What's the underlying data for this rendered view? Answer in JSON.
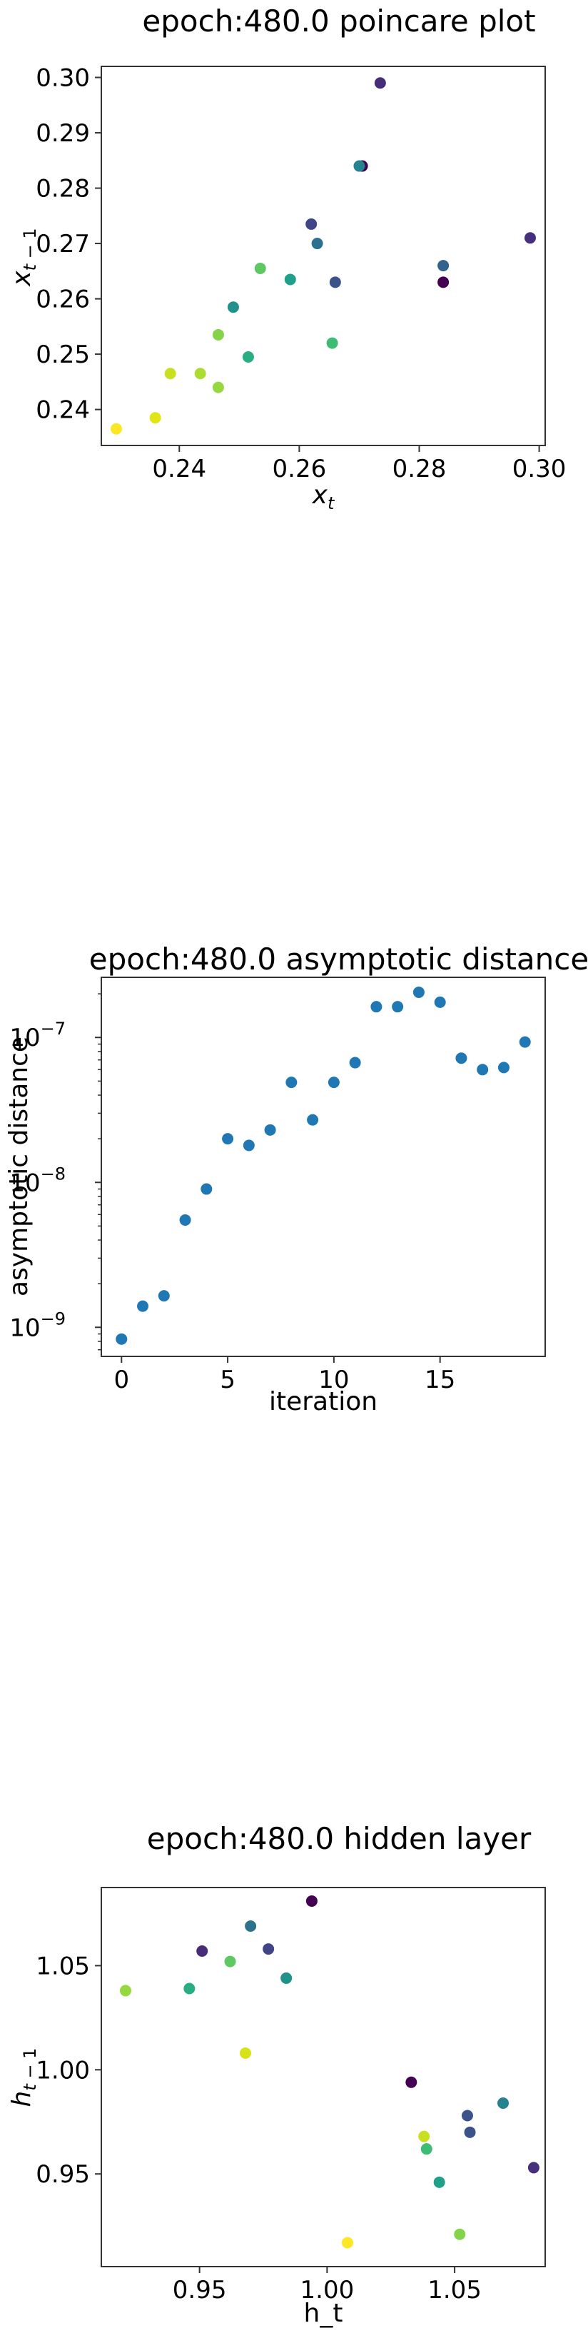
{
  "chart_data": [
    {
      "type": "scatter",
      "title": "epoch:480.0 poincare plot",
      "xlabel": "x_t",
      "ylabel": "x_{t-1}",
      "xlim": [
        0.227,
        0.301
      ],
      "ylim": [
        0.2335,
        0.302
      ],
      "xticks": [
        0.24,
        0.26,
        0.28,
        0.3
      ],
      "xtick_labels": [
        "0.24",
        "0.26",
        "0.28",
        "0.30"
      ],
      "yticks": [
        0.24,
        0.25,
        0.26,
        0.27,
        0.28,
        0.29,
        0.3
      ],
      "ytick_labels": [
        "0.24",
        "0.25",
        "0.26",
        "0.27",
        "0.28",
        "0.29",
        "0.30"
      ],
      "colormap": "viridis",
      "points": [
        {
          "x": 0.284,
          "y": 0.263,
          "color": "#440154"
        },
        {
          "x": 0.2705,
          "y": 0.284,
          "color": "#440154"
        },
        {
          "x": 0.2735,
          "y": 0.299,
          "color": "#472c7a"
        },
        {
          "x": 0.2985,
          "y": 0.271,
          "color": "#46307e"
        },
        {
          "x": 0.262,
          "y": 0.2735,
          "color": "#414487"
        },
        {
          "x": 0.266,
          "y": 0.263,
          "color": "#3b528b"
        },
        {
          "x": 0.284,
          "y": 0.266,
          "color": "#33638d"
        },
        {
          "x": 0.263,
          "y": 0.27,
          "color": "#2c728e"
        },
        {
          "x": 0.27,
          "y": 0.284,
          "color": "#26828e"
        },
        {
          "x": 0.249,
          "y": 0.2585,
          "color": "#21918c"
        },
        {
          "x": 0.2585,
          "y": 0.2635,
          "color": "#1fa088"
        },
        {
          "x": 0.2515,
          "y": 0.2495,
          "color": "#28ae80"
        },
        {
          "x": 0.2655,
          "y": 0.252,
          "color": "#3fbc73"
        },
        {
          "x": 0.2535,
          "y": 0.2655,
          "color": "#5ec962"
        },
        {
          "x": 0.2465,
          "y": 0.2535,
          "color": "#84d44b"
        },
        {
          "x": 0.2465,
          "y": 0.244,
          "color": "#95d840"
        },
        {
          "x": 0.2435,
          "y": 0.2465,
          "color": "#addc30"
        },
        {
          "x": 0.2385,
          "y": 0.2465,
          "color": "#c8e020"
        },
        {
          "x": 0.236,
          "y": 0.2385,
          "color": "#e2e418"
        },
        {
          "x": 0.2295,
          "y": 0.2365,
          "color": "#fde725"
        }
      ]
    },
    {
      "type": "scatter",
      "title": "epoch:480.0 asymptotic distance",
      "xlabel": "iteration",
      "ylabel": "asymptotic distance",
      "yscale": "log",
      "xlim": [
        -0.95,
        19.95
      ],
      "ylim": [
        6.3e-10,
        2.6e-07
      ],
      "xticks": [
        0,
        5,
        10,
        15
      ],
      "xtick_labels": [
        "0",
        "5",
        "10",
        "15"
      ],
      "yticks": [
        1e-09,
        1e-08,
        1e-07
      ],
      "ytick_labels": [
        "10",
        "10",
        "10"
      ],
      "ytick_exponents": [
        "−9",
        "−8",
        "−7"
      ],
      "color": "#1f77b4",
      "x": [
        0,
        1,
        2,
        3,
        4,
        5,
        6,
        7,
        8,
        9,
        10,
        11,
        12,
        13,
        14,
        15,
        16,
        17,
        18,
        19
      ],
      "y": [
        8.3e-10,
        1.4e-09,
        1.65e-09,
        5.5e-09,
        9e-09,
        2e-08,
        1.8e-08,
        2.3e-08,
        4.9e-08,
        2.7e-08,
        4.9e-08,
        6.7e-08,
        1.63e-07,
        1.63e-07,
        2.05e-07,
        1.75e-07,
        7.2e-08,
        6e-08,
        6.2e-08,
        9.3e-08
      ]
    },
    {
      "type": "scatter",
      "title": "epoch:480.0 hidden layer",
      "xlabel": "h_t",
      "ylabel": "h_{t-1}",
      "xlim": [
        0.9115,
        1.0855
      ],
      "ylim": [
        0.9055,
        1.0875
      ],
      "xticks": [
        0.95,
        1.0,
        1.05
      ],
      "xtick_labels": [
        "0.95",
        "1.00",
        "1.05"
      ],
      "yticks": [
        0.95,
        1.0,
        1.05
      ],
      "ytick_labels": [
        "0.95",
        "1.00",
        "1.05"
      ],
      "colormap": "viridis",
      "points": [
        {
          "x": 0.994,
          "y": 1.081,
          "color": "#440154"
        },
        {
          "x": 1.033,
          "y": 0.994,
          "color": "#440154"
        },
        {
          "x": 1.081,
          "y": 0.953,
          "color": "#46307e"
        },
        {
          "x": 0.951,
          "y": 1.057,
          "color": "#472c7a"
        },
        {
          "x": 0.977,
          "y": 1.058,
          "color": "#414487"
        },
        {
          "x": 1.055,
          "y": 0.978,
          "color": "#3b528b"
        },
        {
          "x": 1.056,
          "y": 0.97,
          "color": "#3b528b"
        },
        {
          "x": 0.97,
          "y": 1.069,
          "color": "#2c728e"
        },
        {
          "x": 1.069,
          "y": 0.984,
          "color": "#26828e"
        },
        {
          "x": 0.984,
          "y": 1.044,
          "color": "#21918c"
        },
        {
          "x": 1.044,
          "y": 0.946,
          "color": "#1fa088"
        },
        {
          "x": 0.946,
          "y": 1.039,
          "color": "#28ae80"
        },
        {
          "x": 1.039,
          "y": 0.962,
          "color": "#3fbc73"
        },
        {
          "x": 0.962,
          "y": 1.052,
          "color": "#5ec962"
        },
        {
          "x": 1.052,
          "y": 0.921,
          "color": "#84d44b"
        },
        {
          "x": 0.921,
          "y": 1.038,
          "color": "#95d840"
        },
        {
          "x": 1.038,
          "y": 0.968,
          "color": "#c8e020"
        },
        {
          "x": 0.968,
          "y": 1.008,
          "color": "#d8e219"
        },
        {
          "x": 1.008,
          "y": 0.917,
          "color": "#fde725"
        }
      ]
    }
  ]
}
